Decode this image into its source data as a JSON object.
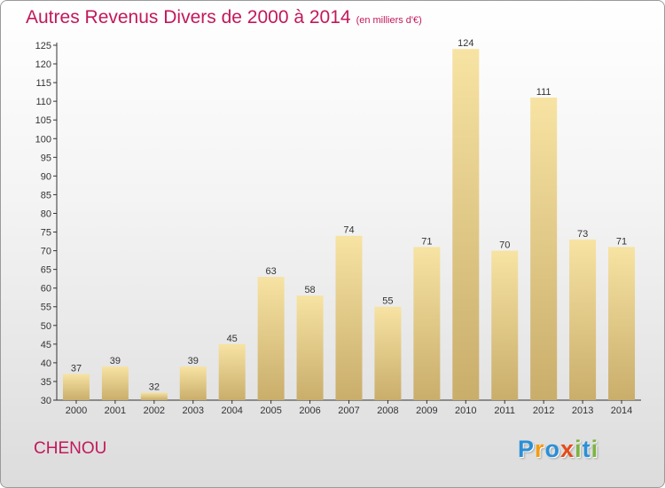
{
  "title": "Autres Revenus Divers de 2000 à 2014",
  "unit_note": "(en milliers d'€)",
  "commune": "CHENOU",
  "logo": {
    "letters": [
      {
        "ch": "P",
        "color": "#2a8fd6"
      },
      {
        "ch": "r",
        "color": "#f39c12"
      },
      {
        "ch": "o",
        "color": "#2a8fd6"
      },
      {
        "ch": "x",
        "color": "#e64a19"
      },
      {
        "ch": "i",
        "color": "#7cb342"
      },
      {
        "ch": "t",
        "color": "#2a8fd6"
      },
      {
        "ch": "i",
        "color": "#7cb342"
      }
    ]
  },
  "colors": {
    "title": "#c2185b",
    "bar_light": "#f7e3a3",
    "bar_dark": "#c9ad6b"
  },
  "chart_data": {
    "type": "bar",
    "categories": [
      "2000",
      "2001",
      "2002",
      "2003",
      "2004",
      "2005",
      "2006",
      "2007",
      "2008",
      "2009",
      "2010",
      "2011",
      "2012",
      "2013",
      "2014"
    ],
    "values": [
      37,
      39,
      32,
      39,
      45,
      63,
      58,
      74,
      55,
      71,
      124,
      70,
      111,
      73,
      71
    ],
    "ylim": [
      30,
      125
    ],
    "yticks": [
      30,
      35,
      40,
      45,
      50,
      55,
      60,
      65,
      70,
      75,
      80,
      85,
      90,
      95,
      100,
      105,
      110,
      115,
      120,
      125
    ],
    "grid": false,
    "legend": "none"
  }
}
